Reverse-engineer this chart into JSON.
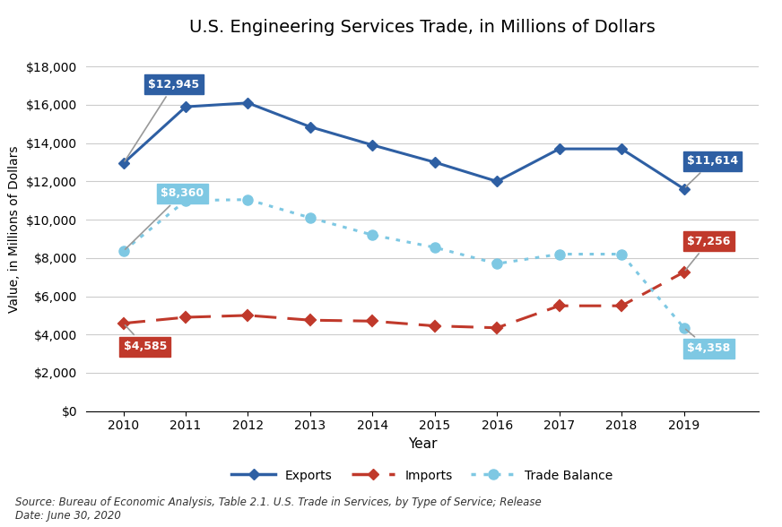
{
  "title": "U.S. Engineering Services Trade, in Millions of Dollars",
  "xlabel": "Year",
  "ylabel": "Value, in Millions of Dollars",
  "years": [
    2010,
    2011,
    2012,
    2013,
    2014,
    2015,
    2016,
    2017,
    2018,
    2019
  ],
  "exports": [
    12945,
    15900,
    16100,
    14850,
    13900,
    13000,
    12000,
    13700,
    13700,
    11614
  ],
  "imports": [
    4585,
    4900,
    5000,
    4750,
    4700,
    4450,
    4350,
    5500,
    5500,
    7256
  ],
  "trade_balance": [
    8360,
    11000,
    11050,
    10100,
    9200,
    8550,
    7700,
    8200,
    8200,
    4358
  ],
  "exports_color": "#2E5FA3",
  "imports_color": "#C0392B",
  "trade_balance_color": "#7EC8E3",
  "annotation_exports_2010": "$12,945",
  "annotation_exports_2019": "$11,614",
  "annotation_imports_2010": "$4,585",
  "annotation_imports_2019": "$7,256",
  "annotation_tb_2010": "$8,360",
  "annotation_tb_2019": "$4,358",
  "source_text": "Source: Bureau of Economic Analysis, Table 2.1. U.S. Trade in Services, by Type of Service; Release\nDate: June 30, 2020",
  "ylim": [
    0,
    19000
  ],
  "yticks": [
    0,
    2000,
    4000,
    6000,
    8000,
    10000,
    12000,
    14000,
    16000,
    18000
  ],
  "background_color": "#FFFFFF",
  "grid_color": "#CCCCCC"
}
